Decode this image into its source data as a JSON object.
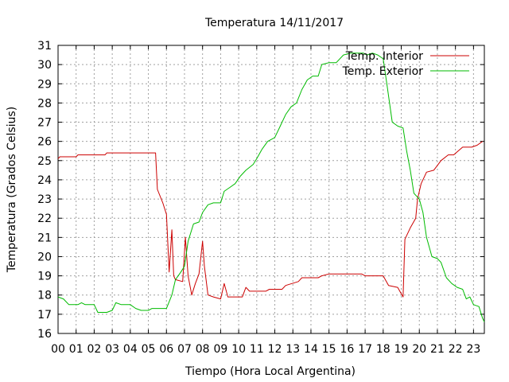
{
  "chart_data": {
    "type": "line",
    "title": "Temperatura 14/11/2017",
    "xlabel": "Tiempo (Hora Local Argentina)",
    "ylabel": "Temperatura (Grados Celsius)",
    "xlim": [
      0,
      23.6
    ],
    "ylim": [
      16,
      31
    ],
    "grid": true,
    "legend_position": "top-right",
    "x_tick_labels": [
      "00",
      "01",
      "02",
      "03",
      "04",
      "05",
      "06",
      "07",
      "08",
      "09",
      "10",
      "11",
      "12",
      "13",
      "14",
      "15",
      "16",
      "17",
      "18",
      "19",
      "20",
      "21",
      "22",
      "23"
    ],
    "y_tick_labels": [
      "16",
      "17",
      "18",
      "19",
      "20",
      "21",
      "22",
      "23",
      "24",
      "25",
      "26",
      "27",
      "28",
      "29",
      "30",
      "31"
    ],
    "series": [
      {
        "name": "Temp. Interior",
        "color": "#cc0000",
        "points": [
          [
            0,
            25.1
          ],
          [
            0.1,
            25.2
          ],
          [
            1,
            25.2
          ],
          [
            1.1,
            25.3
          ],
          [
            2.6,
            25.3
          ],
          [
            2.7,
            25.4
          ],
          [
            5.4,
            25.4
          ],
          [
            5.5,
            23.5
          ],
          [
            5.8,
            22.8
          ],
          [
            6.0,
            22.2
          ],
          [
            6.15,
            19.2
          ],
          [
            6.3,
            21.4
          ],
          [
            6.4,
            19.0
          ],
          [
            6.5,
            18.8
          ],
          [
            6.9,
            18.7
          ],
          [
            7.05,
            21.0
          ],
          [
            7.2,
            19.0
          ],
          [
            7.4,
            18.0
          ],
          [
            7.6,
            18.6
          ],
          [
            7.8,
            19.1
          ],
          [
            8.0,
            20.8
          ],
          [
            8.1,
            19.5
          ],
          [
            8.3,
            18.0
          ],
          [
            8.6,
            17.9
          ],
          [
            9.0,
            17.8
          ],
          [
            9.2,
            18.6
          ],
          [
            9.4,
            17.9
          ],
          [
            10.2,
            17.9
          ],
          [
            10.4,
            18.4
          ],
          [
            10.6,
            18.2
          ],
          [
            11.5,
            18.2
          ],
          [
            11.7,
            18.3
          ],
          [
            12.4,
            18.3
          ],
          [
            12.6,
            18.5
          ],
          [
            13.3,
            18.7
          ],
          [
            13.5,
            18.9
          ],
          [
            14.4,
            18.9
          ],
          [
            14.6,
            19.0
          ],
          [
            15.0,
            19.1
          ],
          [
            16.8,
            19.1
          ],
          [
            17.0,
            19.0
          ],
          [
            18.0,
            19.0
          ],
          [
            18.3,
            18.5
          ],
          [
            18.8,
            18.4
          ],
          [
            19.1,
            17.9
          ],
          [
            19.2,
            20.9
          ],
          [
            19.5,
            21.5
          ],
          [
            19.8,
            22.0
          ],
          [
            19.9,
            23.0
          ],
          [
            20.1,
            23.8
          ],
          [
            20.4,
            24.4
          ],
          [
            20.8,
            24.5
          ],
          [
            21.2,
            25.0
          ],
          [
            21.6,
            25.3
          ],
          [
            21.9,
            25.3
          ],
          [
            22.4,
            25.7
          ],
          [
            22.9,
            25.7
          ],
          [
            23.2,
            25.8
          ],
          [
            23.5,
            26.0
          ]
        ]
      },
      {
        "name": "Temp. Exterior",
        "color": "#00bb00",
        "points": [
          [
            0,
            17.9
          ],
          [
            0.3,
            17.8
          ],
          [
            0.6,
            17.5
          ],
          [
            1.1,
            17.5
          ],
          [
            1.3,
            17.6
          ],
          [
            1.5,
            17.5
          ],
          [
            2.0,
            17.5
          ],
          [
            2.2,
            17.1
          ],
          [
            2.7,
            17.1
          ],
          [
            3.0,
            17.2
          ],
          [
            3.2,
            17.6
          ],
          [
            3.5,
            17.5
          ],
          [
            4.0,
            17.5
          ],
          [
            4.3,
            17.3
          ],
          [
            4.6,
            17.2
          ],
          [
            5.0,
            17.2
          ],
          [
            5.2,
            17.3
          ],
          [
            6.0,
            17.3
          ],
          [
            6.3,
            18.0
          ],
          [
            6.5,
            18.8
          ],
          [
            6.8,
            19.2
          ],
          [
            7.0,
            19.5
          ],
          [
            7.2,
            20.8
          ],
          [
            7.5,
            21.7
          ],
          [
            7.8,
            21.8
          ],
          [
            8.0,
            22.3
          ],
          [
            8.3,
            22.7
          ],
          [
            8.6,
            22.8
          ],
          [
            9.0,
            22.8
          ],
          [
            9.2,
            23.4
          ],
          [
            9.5,
            23.6
          ],
          [
            9.8,
            23.8
          ],
          [
            10.1,
            24.2
          ],
          [
            10.4,
            24.5
          ],
          [
            10.8,
            24.8
          ],
          [
            11.0,
            25.1
          ],
          [
            11.3,
            25.6
          ],
          [
            11.6,
            26.0
          ],
          [
            12.0,
            26.2
          ],
          [
            12.3,
            26.8
          ],
          [
            12.6,
            27.4
          ],
          [
            12.9,
            27.8
          ],
          [
            13.2,
            28.0
          ],
          [
            13.5,
            28.7
          ],
          [
            13.8,
            29.2
          ],
          [
            14.1,
            29.4
          ],
          [
            14.4,
            29.4
          ],
          [
            14.6,
            30.0
          ],
          [
            15.0,
            30.1
          ],
          [
            15.4,
            30.1
          ],
          [
            15.8,
            30.5
          ],
          [
            16.2,
            30.6
          ],
          [
            16.6,
            30.6
          ],
          [
            16.9,
            30.6
          ],
          [
            17.1,
            30.5
          ],
          [
            17.4,
            30.6
          ],
          [
            17.7,
            30.5
          ],
          [
            18.0,
            30.3
          ],
          [
            18.2,
            29.0
          ],
          [
            18.5,
            27.0
          ],
          [
            18.8,
            26.8
          ],
          [
            19.1,
            26.7
          ],
          [
            19.3,
            25.5
          ],
          [
            19.5,
            24.5
          ],
          [
            19.7,
            23.3
          ],
          [
            20.0,
            23.0
          ],
          [
            20.2,
            22.3
          ],
          [
            20.4,
            21.0
          ],
          [
            20.7,
            20.0
          ],
          [
            21.0,
            19.9
          ],
          [
            21.2,
            19.7
          ],
          [
            21.5,
            18.9
          ],
          [
            21.8,
            18.6
          ],
          [
            22.1,
            18.4
          ],
          [
            22.4,
            18.3
          ],
          [
            22.6,
            17.8
          ],
          [
            22.8,
            17.9
          ],
          [
            23.0,
            17.5
          ],
          [
            23.3,
            17.4
          ],
          [
            23.5,
            16.8
          ],
          [
            23.6,
            16.6
          ]
        ]
      }
    ]
  }
}
